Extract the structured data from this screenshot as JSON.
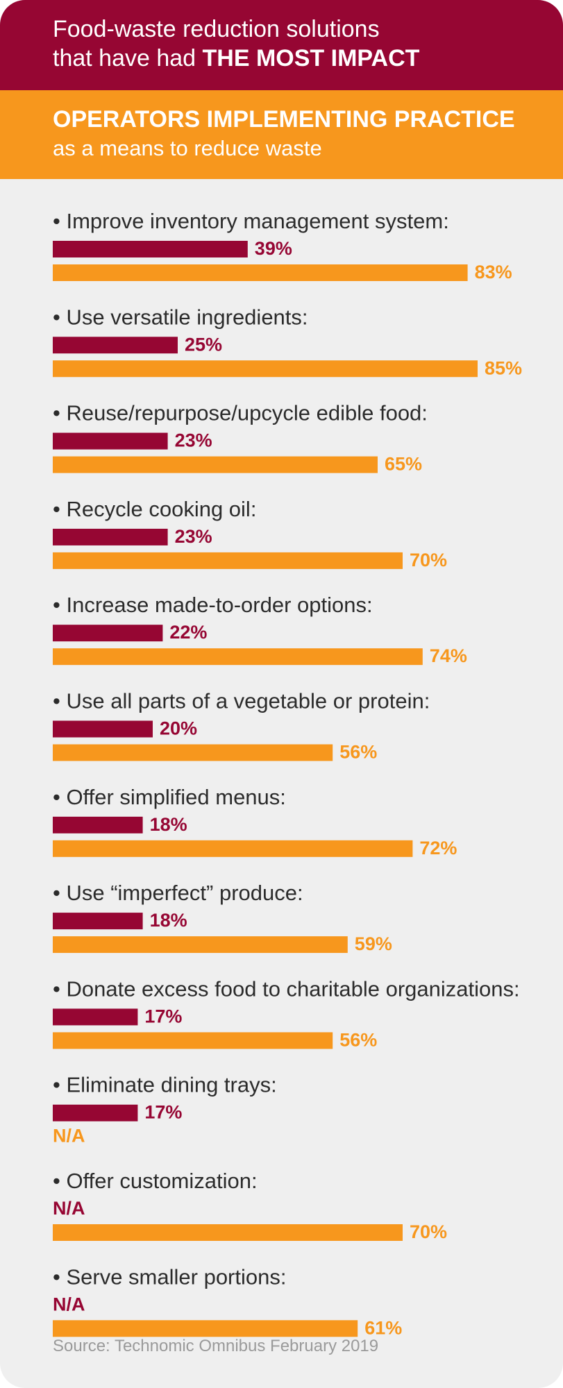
{
  "header": {
    "line1": "Food-waste reduction solutions",
    "line2_prefix": "that have had ",
    "line2_strong": "THE MOST IMPACT"
  },
  "subheader": {
    "title": "OPERATORS IMPLEMENTING PRACTICE",
    "subtitle": "as a means to reduce waste"
  },
  "colors": {
    "maroon": "#960633",
    "orange": "#f7971d",
    "background": "#efefef"
  },
  "chart_data": {
    "type": "bar",
    "orientation": "horizontal",
    "categories": [
      "• Improve inventory management system:",
      "• Use versatile ingredients:",
      "• Reuse/repurpose/upcycle edible food:",
      "• Recycle cooking oil:",
      "• Increase made-to-order options:",
      "• Use all parts of a vegetable or protein:",
      "• Offer simplified menus:",
      "• Use “imperfect” produce:",
      "• Donate excess food to charitable organizations:",
      "• Eliminate dining trays:",
      "• Offer customization:",
      "• Serve smaller portions:"
    ],
    "series": [
      {
        "values": [
          39,
          25,
          23,
          23,
          22,
          20,
          18,
          18,
          17,
          17,
          null,
          null
        ],
        "labels": [
          "39%",
          "25%",
          "23%",
          "23%",
          "22%",
          "20%",
          "18%",
          "18%",
          "17%",
          "17%",
          "N/A",
          "N/A"
        ],
        "color": "#960633"
      },
      {
        "values": [
          83,
          85,
          65,
          70,
          74,
          56,
          72,
          59,
          56,
          null,
          70,
          61
        ],
        "labels": [
          "83%",
          "85%",
          "65%",
          "70%",
          "74%",
          "56%",
          "72%",
          "59%",
          "56%",
          "N/A",
          "70%",
          "61%"
        ],
        "color": "#f7971d"
      }
    ],
    "xlim": [
      0,
      100
    ]
  },
  "source": "Source: Technomic Omnibus February 2019"
}
